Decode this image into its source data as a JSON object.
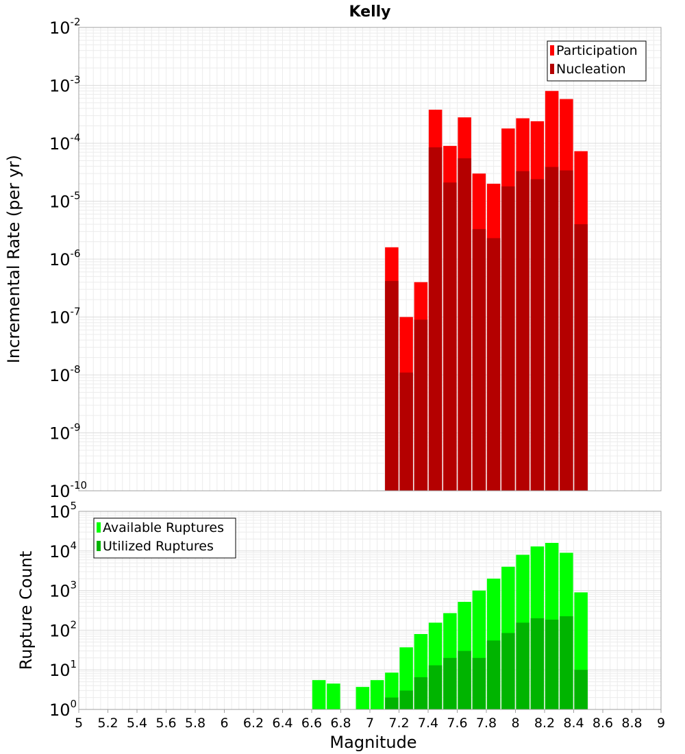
{
  "chart_data": [
    {
      "type": "bar",
      "title": "Kelly",
      "ylabel": "Incremental Rate (per yr)",
      "xlabel": "",
      "scale_y": "log",
      "ylim_exp": [
        -10,
        -2
      ],
      "xlim": [
        5,
        9
      ],
      "grid": true,
      "legend_position": "top-right",
      "x": [
        7.15,
        7.25,
        7.35,
        7.45,
        7.55,
        7.65,
        7.75,
        7.85,
        7.95,
        8.05,
        8.15,
        8.25,
        8.35,
        8.45
      ],
      "series": [
        {
          "name": "Participation",
          "color": "#ff0000",
          "values": [
            1.6e-06,
            1e-07,
            4e-07,
            0.00038,
            9e-05,
            0.00028,
            3e-05,
            2e-05,
            0.00018,
            0.00027,
            0.00024,
            0.0008,
            0.00058,
            7.3e-05
          ]
        },
        {
          "name": "Nucleation",
          "color": "#b40000",
          "values": [
            4.2e-07,
            1.1e-08,
            9e-08,
            8.5e-05,
            2.1e-05,
            5.5e-05,
            3.3e-06,
            2.3e-06,
            1.8e-05,
            3.3e-05,
            2.4e-05,
            3.9e-05,
            3.4e-05,
            4e-06
          ]
        }
      ]
    },
    {
      "type": "bar",
      "title": "",
      "ylabel": "Rupture Count",
      "xlabel": "Magnitude",
      "scale_y": "log",
      "ylim_exp": [
        0,
        5
      ],
      "xlim": [
        5,
        9
      ],
      "grid": true,
      "legend_position": "top-left",
      "x": [
        6.65,
        6.75,
        6.85,
        6.95,
        7.05,
        7.15,
        7.25,
        7.35,
        7.45,
        7.55,
        7.65,
        7.75,
        7.85,
        7.95,
        8.05,
        8.15,
        8.25,
        8.35,
        8.45
      ],
      "series": [
        {
          "name": "Available Ruptures",
          "color": "#00ff00",
          "values": [
            5.5,
            4.5,
            null,
            3.7,
            5.5,
            8.5,
            37,
            80,
            155,
            270,
            520,
            1000,
            2000,
            4000,
            8000,
            13000,
            16000,
            9000,
            900
          ]
        },
        {
          "name": "Utilized Ruptures",
          "color": "#00b400",
          "values": [
            null,
            null,
            null,
            null,
            null,
            2,
            3,
            6.5,
            13,
            20,
            30,
            20,
            55,
            85,
            155,
            200,
            185,
            225,
            10
          ]
        }
      ]
    }
  ],
  "x_ticks": [
    "5",
    "5.2",
    "5.4",
    "5.6",
    "5.8",
    "6",
    "6.2",
    "6.4",
    "6.6",
    "6.8",
    "7",
    "7.2",
    "7.4",
    "7.6",
    "7.8",
    "8",
    "8.2",
    "8.4",
    "8.6",
    "8.8",
    "9"
  ]
}
